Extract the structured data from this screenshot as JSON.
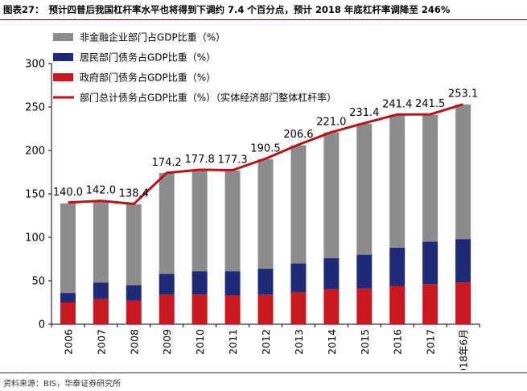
{
  "caption": {
    "label": "图表27：",
    "text": "预计四普后我国杠杆率水平也将得到下调约 7.4 个百分点，预计 2018 年底杠杆率调降至 246%"
  },
  "source": "资料来源：BIS，华泰证券研究所",
  "colors": {
    "nonfinancial": "#8c8c8c",
    "household": "#1f2a78",
    "government": "#c8191f",
    "total_line": "#b5141a"
  },
  "chart_data": {
    "type": "bar",
    "stacked": true,
    "title": "",
    "xlabel": "",
    "ylabel": "",
    "ylim": [
      0,
      300
    ],
    "yticks": [
      0,
      50,
      100,
      150,
      200,
      250,
      300
    ],
    "categories": [
      "2006",
      "2007",
      "2008",
      "2009",
      "2010",
      "2011",
      "2012",
      "2013",
      "2014",
      "2015",
      "2016",
      "2017",
      "2018年6月"
    ],
    "series": [
      {
        "name": "政府部门债务占GDP比重（%）",
        "key": "government",
        "type": "bar",
        "values": [
          25,
          29,
          27,
          34,
          34,
          33,
          34,
          37,
          40,
          41,
          44,
          46,
          48
        ]
      },
      {
        "name": "居民部门债务占GDP比重（%）",
        "key": "household",
        "type": "bar",
        "values": [
          11,
          19,
          18,
          24,
          27,
          28,
          30,
          33,
          36,
          39,
          44,
          49,
          50
        ]
      },
      {
        "name": "非金融企业部门占GDP比重（%）",
        "key": "nonfinancial",
        "type": "bar",
        "values": [
          103,
          93,
          93,
          116,
          117,
          116,
          126,
          136,
          145,
          151,
          153,
          146,
          155
        ]
      },
      {
        "name": "部门总计债务占GDP比重（%）（实体经济部门整体杠杆率）",
        "key": "total_line",
        "type": "line",
        "values": [
          140.0,
          142.0,
          138.4,
          174.2,
          177.8,
          177.3,
          190.5,
          206.6,
          221.0,
          231.4,
          241.4,
          241.5,
          253.1
        ]
      }
    ],
    "data_labels": [
      "140.0",
      "142.0",
      "138.4",
      "174.2",
      "177.8",
      "177.3",
      "190.5",
      "206.6",
      "221.0",
      "231.4",
      "241.4",
      "241.5",
      "253.1"
    ],
    "legend_order": [
      "nonfinancial",
      "household",
      "government",
      "total_line"
    ],
    "legend_position": "top-left"
  }
}
